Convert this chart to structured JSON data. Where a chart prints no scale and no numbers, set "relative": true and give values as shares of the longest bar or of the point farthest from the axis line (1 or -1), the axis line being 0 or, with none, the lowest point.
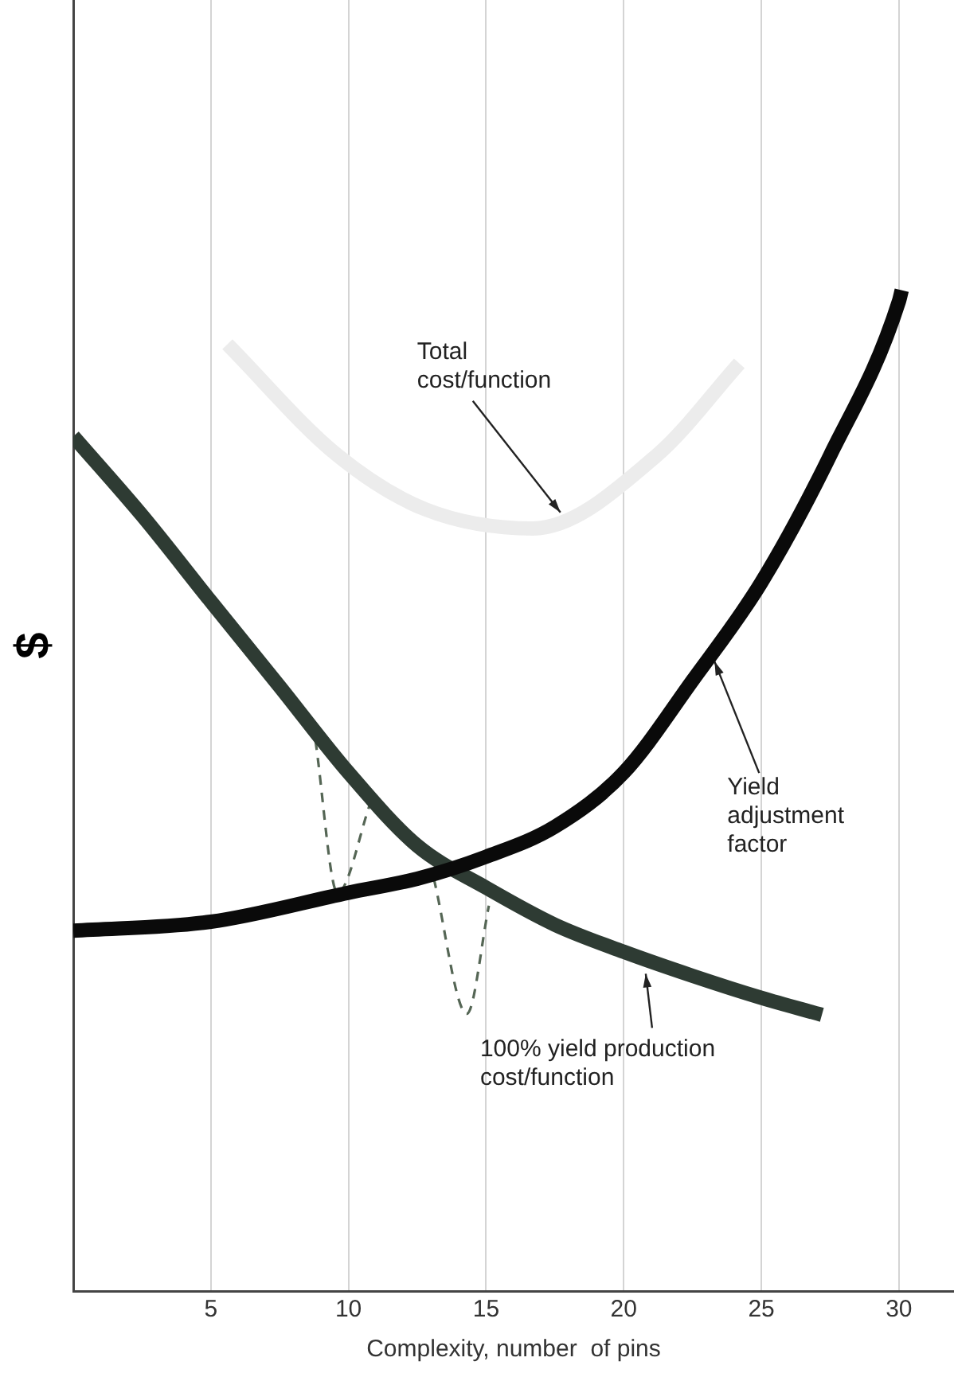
{
  "chart_data": {
    "type": "line",
    "relative": true,
    "xlabel": "Complexity, number  of pins",
    "ylabel": "$",
    "xlim": [
      0,
      32
    ],
    "xticks": [
      5,
      10,
      15,
      20,
      25,
      30
    ],
    "grid": "x",
    "legend": false,
    "marker": "none",
    "series": [
      {
        "color": "#ececec",
        "x": [
          5.6,
          9.6,
          12.8,
          16.7,
          21.2,
          24.2
        ],
        "values": [
          0.946,
          0.835,
          0.781,
          0.762,
          0.835,
          0.927
        ]
      },
      {
        "color": "#0a0a0a",
        "x": [
          0,
          5,
          10,
          12.5,
          15,
          17.5,
          20,
          22.5,
          25,
          27.5,
          30,
          30.1
        ],
        "values": [
          0.36,
          0.369,
          0.398,
          0.412,
          0.434,
          0.464,
          0.518,
          0.61,
          0.708,
          0.835,
          0.989,
          1
        ]
      },
      {
        "color": "#2e3b33",
        "x": [
          0,
          2.5,
          5,
          7.5,
          10,
          12.5,
          15,
          17.5,
          20,
          22.5,
          25,
          27.2
        ],
        "values": [
          0.854,
          0.775,
          0.689,
          0.604,
          0.518,
          0.445,
          0.403,
          0.366,
          0.339,
          0.315,
          0.293,
          0.276
        ]
      },
      {
        "color": "#556655",
        "line_style": "dashed",
        "x": [
          8.8,
          9.6,
          10.8
        ],
        "values": [
          0.55,
          0.398,
          0.488
        ]
      },
      {
        "color": "#556655",
        "line_style": "dashed",
        "x": [
          13.1,
          14.3,
          15.1
        ],
        "values": [
          0.412,
          0.277,
          0.385
        ]
      }
    ],
    "annotations": [
      {
        "text": "Total cost/function",
        "x": 17.7,
        "y": 0.778
      },
      {
        "text": "Yield adjustment factor",
        "x": 23.3,
        "y": 0.629
      },
      {
        "text": "100% yield production cost/function",
        "x": 20.8,
        "y": 0.317
      }
    ]
  }
}
